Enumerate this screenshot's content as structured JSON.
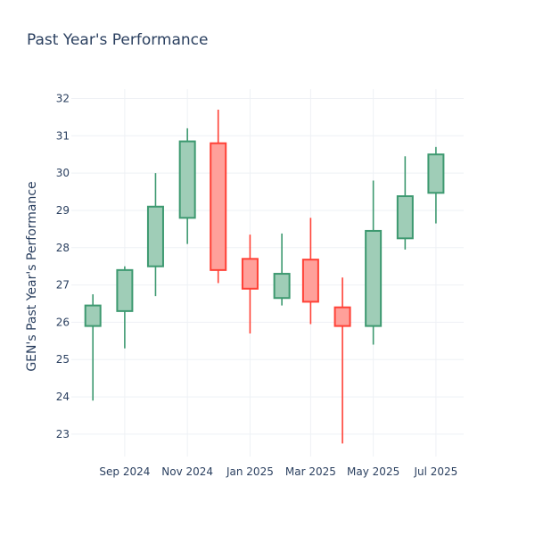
{
  "chart_data": {
    "type": "candlestick",
    "title": "Past Year's Performance",
    "xlabel": "",
    "ylabel": "GEN's Past Year's Performance",
    "ylim": [
      22.4,
      32.25
    ],
    "xlim": [
      "2024-07-11",
      "2025-07-28"
    ],
    "grid": true,
    "x_ticks": [
      {
        "date": "2024-09-01",
        "label": "Sep 2024"
      },
      {
        "date": "2024-11-01",
        "label": "Nov 2024"
      },
      {
        "date": "2025-01-01",
        "label": "Jan 2025"
      },
      {
        "date": "2025-03-01",
        "label": "Mar 2025"
      },
      {
        "date": "2025-05-01",
        "label": "May 2025"
      },
      {
        "date": "2025-07-01",
        "label": "Jul 2025"
      }
    ],
    "y_ticks": [
      23,
      24,
      25,
      26,
      27,
      28,
      29,
      30,
      31,
      32
    ],
    "colors": {
      "increasing_line": "#3d9970",
      "increasing_fill": "#9fcdb7",
      "decreasing_line": "#ff4136",
      "decreasing_fill": "#ffa09a",
      "text": "#2a3f5f"
    },
    "candles": [
      {
        "date": "2024-08-01",
        "open": 25.9,
        "high": 26.75,
        "low": 23.9,
        "close": 26.45
      },
      {
        "date": "2024-09-01",
        "open": 26.3,
        "high": 27.5,
        "low": 25.3,
        "close": 27.4
      },
      {
        "date": "2024-10-01",
        "open": 27.5,
        "high": 30.0,
        "low": 26.7,
        "close": 29.1
      },
      {
        "date": "2024-11-01",
        "open": 28.8,
        "high": 31.2,
        "low": 28.1,
        "close": 30.85
      },
      {
        "date": "2024-12-01",
        "open": 30.8,
        "high": 31.7,
        "low": 27.05,
        "close": 27.4
      },
      {
        "date": "2025-01-01",
        "open": 27.7,
        "high": 28.35,
        "low": 25.7,
        "close": 26.9
      },
      {
        "date": "2025-02-01",
        "open": 26.65,
        "high": 28.38,
        "low": 26.45,
        "close": 27.3
      },
      {
        "date": "2025-03-01",
        "open": 27.68,
        "high": 28.8,
        "low": 25.95,
        "close": 26.55
      },
      {
        "date": "2025-04-01",
        "open": 26.4,
        "high": 27.2,
        "low": 22.75,
        "close": 25.9
      },
      {
        "date": "2025-05-01",
        "open": 25.9,
        "high": 29.8,
        "low": 25.4,
        "close": 28.45
      },
      {
        "date": "2025-06-01",
        "open": 28.25,
        "high": 30.45,
        "low": 27.95,
        "close": 29.38
      },
      {
        "date": "2025-07-01",
        "open": 29.47,
        "high": 30.7,
        "low": 28.65,
        "close": 30.5
      }
    ]
  }
}
